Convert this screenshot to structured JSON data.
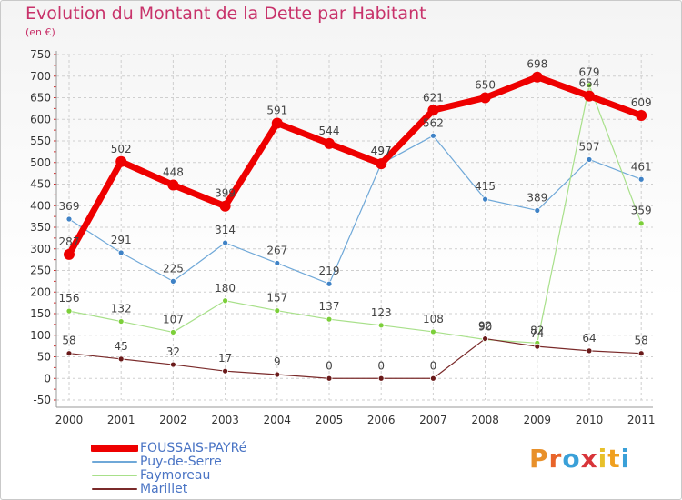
{
  "title": "Evolution du Montant de la Dette par Habitant",
  "unit_label": "(en €)",
  "logo": {
    "text": "Proxiti",
    "letter_colors": [
      "#e8902a",
      "#e8642a",
      "#3aa0d8",
      "#d8353a",
      "#e8c02a",
      "#f0a020",
      "#3aa0d8"
    ]
  },
  "colors": {
    "title": "#c8326a",
    "legend_text": "#4a74c4",
    "grid": "#cfcfcf",
    "minor_tick": "#d42222"
  },
  "chart_data": {
    "type": "line",
    "x": [
      "2000",
      "2001",
      "2002",
      "2003",
      "2004",
      "2005",
      "2006",
      "2007",
      "2008",
      "2009",
      "2010",
      "2011"
    ],
    "ylim": [
      -50,
      750
    ],
    "yticks": [
      -50,
      0,
      50,
      100,
      150,
      200,
      250,
      300,
      350,
      400,
      450,
      500,
      550,
      600,
      650,
      700,
      750
    ],
    "grid": true,
    "legend_position": "bottom-left",
    "series": [
      {
        "name": "FOUSSAIS-PAYRé",
        "color": "#ee0000",
        "marker_color": "#ee0000",
        "width": 7,
        "marker_r": 6,
        "values": [
          287,
          502,
          448,
          399,
          591,
          544,
          497,
          621,
          650,
          698,
          654,
          609
        ],
        "labels": [
          "287",
          "502",
          "448",
          "399",
          "591",
          "544",
          "497",
          "621",
          "650",
          "698",
          "654",
          "609"
        ]
      },
      {
        "name": "Puy-de-Serre",
        "color": "#6fa8d8",
        "marker_color": "#3f82c6",
        "width": 1.2,
        "marker_r": 3,
        "values": [
          369,
          291,
          225,
          314,
          267,
          219,
          497,
          562,
          415,
          389,
          507,
          461
        ],
        "labels": [
          "369",
          "291",
          "225",
          "314",
          "267",
          "219",
          "497",
          "562",
          "415",
          "389",
          "507",
          "461"
        ]
      },
      {
        "name": "Faymoreau",
        "color": "#a8e08a",
        "marker_color": "#7ccf3a",
        "width": 1.2,
        "marker_r": 3,
        "values": [
          156,
          132,
          107,
          180,
          157,
          137,
          123,
          108,
          90,
          82,
          679,
          359
        ],
        "labels": [
          "156",
          "132",
          "107",
          "180",
          "157",
          "137",
          "123",
          "108",
          "90",
          "82",
          "679",
          "359"
        ]
      },
      {
        "name": "Marillet",
        "color": "#7a2a2a",
        "marker_color": "#6a1a1a",
        "width": 1.2,
        "marker_r": 3,
        "values": [
          58,
          45,
          32,
          17,
          9,
          0,
          0,
          0,
          92,
          74,
          64,
          58
        ],
        "labels": [
          "58",
          "45",
          "32",
          "17",
          "9",
          "0",
          "0",
          "0",
          "92",
          "74",
          "64",
          "58"
        ]
      }
    ]
  }
}
